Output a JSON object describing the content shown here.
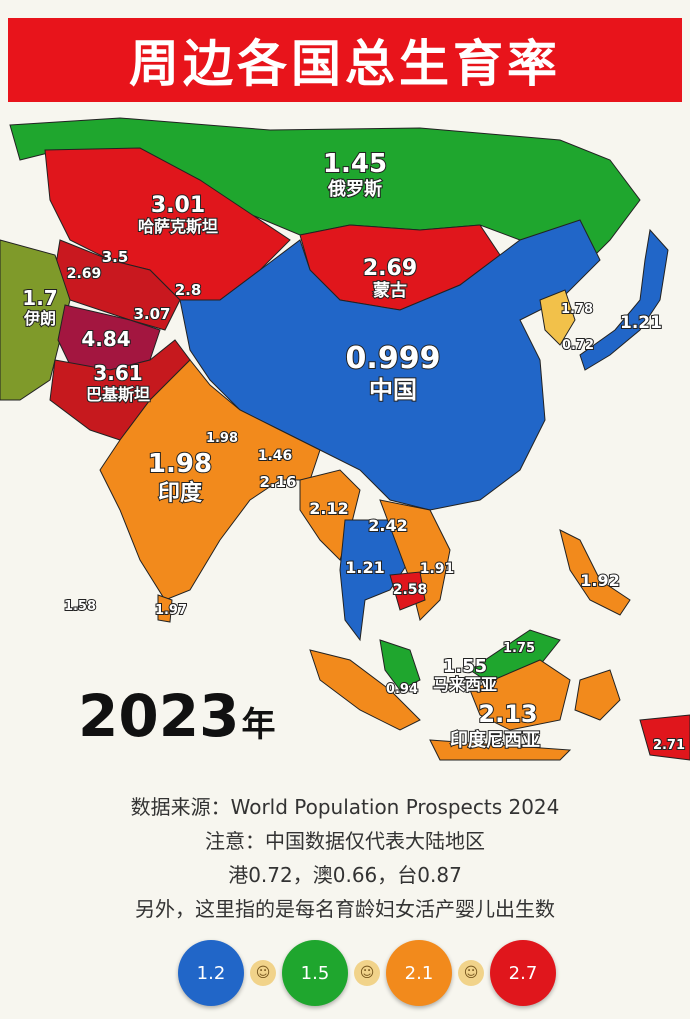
{
  "title": "周边各国总生育率",
  "year": "2023",
  "year_suffix": "年",
  "countries": [
    {
      "name": "俄罗斯",
      "value": "1.45",
      "color": "#1fa62e"
    },
    {
      "name": "哈萨克斯坦",
      "value": "3.01",
      "color": "#e0161c"
    },
    {
      "name": "蒙古",
      "value": "2.69",
      "color": "#e0161c"
    },
    {
      "name": "中国",
      "value": "0.999",
      "color": "#2166c8"
    },
    {
      "name": "伊朗",
      "value": "1.7",
      "color": "#7f9a2a"
    },
    {
      "name": "巴基斯坦",
      "value": "3.61",
      "color": "#c6191e"
    },
    {
      "name": "印度",
      "value": "1.98",
      "color": "#f28a1c"
    },
    {
      "name": "马来西亚",
      "value": "1.55",
      "color": "#1fa62e"
    },
    {
      "name": "印度尼西亚",
      "value": "2.13",
      "color": "#f28a1c"
    }
  ],
  "other_values": [
    "3.5",
    "2.69",
    "2.8",
    "3.07",
    "4.84",
    "1.78",
    "1.21",
    "0.72",
    "1.98",
    "1.46",
    "2.16",
    "2.12",
    "2.42",
    "1.21",
    "1.91",
    "2.58",
    "1.92",
    "1.58",
    "1.97",
    "1.75",
    "0.94",
    "2.71"
  ],
  "notes": {
    "source": "数据来源：World Population Prospects 2024",
    "note": "注意：中国数据仅代表大陆地区",
    "regions": "港0.72，澳0.66，台0.87",
    "definition": "另外，这里指的是每名育龄妇女活产婴儿出生数"
  },
  "legend": [
    {
      "value": "1.2",
      "color": "#2166c8"
    },
    {
      "value": "1.5",
      "color": "#1fa62e"
    },
    {
      "value": "2.1",
      "color": "#f28a1c"
    },
    {
      "value": "2.7",
      "color": "#e0161c"
    }
  ]
}
